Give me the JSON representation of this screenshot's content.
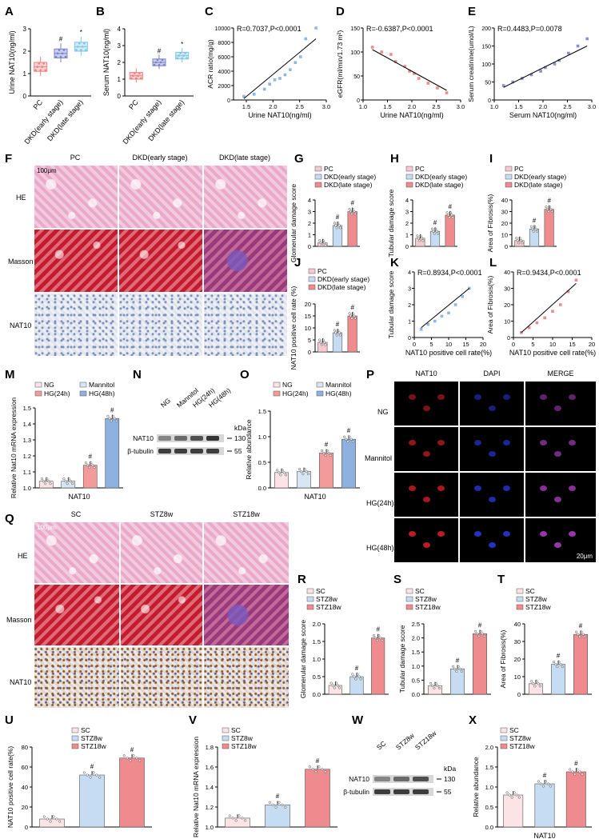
{
  "panels": {
    "A": {
      "letter": "A",
      "ylabel": "Urine NAT10(ng/ml)",
      "categories": [
        "PC",
        "DKD(early stage)",
        "DKD(late stage)"
      ],
      "values": [
        1.3,
        1.9,
        2.2
      ],
      "yticks": [
        "0",
        "1",
        "2",
        "3"
      ],
      "ylim": [
        0,
        3
      ],
      "marks": [
        "",
        "#",
        "*"
      ]
    },
    "B": {
      "letter": "B",
      "ylabel": "Serum NAT10(ng/ml)",
      "categories": [
        "PC",
        "DKD(early stage)",
        "DKD(late stage)"
      ],
      "values": [
        1.2,
        2.0,
        2.4
      ],
      "yticks": [
        "0",
        "1",
        "2",
        "3",
        "4"
      ],
      "ylim": [
        0,
        4
      ],
      "marks": [
        "",
        "#",
        "*"
      ]
    },
    "C": {
      "letter": "C",
      "stat": "R=0.7037,P<0.0001",
      "xlabel": "Urine NAT10(ng/ml)",
      "ylabel": "ACR ratio(mg/g)",
      "xticks": [
        "1.5",
        "2.0",
        "2.5",
        "3.0"
      ],
      "yticks": [
        "0",
        "2000",
        "4000",
        "6000",
        "8000",
        "10000"
      ]
    },
    "D": {
      "letter": "D",
      "stat": "R=-0.6387,P<0.0001",
      "xlabel": "Urine NAT10(ng/ml)",
      "ylabel": "eGFR(ml/min/1.73 m²)",
      "xticks": [
        "1.0",
        "1.5",
        "2.0",
        "2.5",
        "3.0"
      ],
      "yticks": [
        "0",
        "50",
        "100",
        "150"
      ]
    },
    "E": {
      "letter": "E",
      "stat": "R=0.4483,P=0.0078",
      "xlabel": "Serum NAT10(ng/ml)",
      "ylabel": "Serum creatinine(umol/L)",
      "xticks": [
        "1.0",
        "1.5",
        "2.0",
        "2.5",
        "3.0"
      ],
      "yticks": [
        "0",
        "50",
        "100",
        "150",
        "200"
      ]
    },
    "F": {
      "letter": "F",
      "columns": [
        "PC",
        "DKD(early stage)",
        "DKD(late stage)"
      ],
      "rows": [
        "HE",
        "Masson",
        "NAT10"
      ],
      "scale": "100μm"
    },
    "G": {
      "letter": "G",
      "ylabel": "Glomerular damage score",
      "legend": [
        "PC",
        "DKD(early stage)",
        "DKD(late stage)"
      ],
      "values": [
        0.3,
        1.8,
        3.0
      ],
      "yticks": [
        "0",
        "1",
        "2",
        "3",
        "4"
      ],
      "ylim": [
        0,
        4
      ],
      "marks": [
        "",
        "#",
        "#"
      ]
    },
    "H": {
      "letter": "H",
      "ylabel": "Tubular damage score",
      "legend": [
        "PC",
        "DKD(early stage)",
        "DKD(late stage)"
      ],
      "values": [
        0.7,
        1.3,
        2.7
      ],
      "yticks": [
        "0",
        "1",
        "2",
        "3",
        "4"
      ],
      "ylim": [
        0,
        4
      ],
      "marks": [
        "",
        "#",
        "#"
      ]
    },
    "I": {
      "letter": "I",
      "ylabel": "Area of Fibrosis(%)",
      "legend": [
        "PC",
        "DKD(early stage)",
        "DKD(late stage)"
      ],
      "values": [
        5,
        15,
        32
      ],
      "yticks": [
        "0",
        "10",
        "20",
        "30",
        "40"
      ],
      "ylim": [
        0,
        40
      ],
      "marks": [
        "",
        "#",
        "#"
      ]
    },
    "J": {
      "letter": "J",
      "ylabel": "NAT10 positive cell rate (%)",
      "legend": [
        "PC",
        "DKD(early stage)",
        "DKD(late stage)"
      ],
      "values": [
        4,
        8,
        15
      ],
      "yticks": [
        "0",
        "5",
        "10",
        "15",
        "20"
      ],
      "ylim": [
        0,
        20
      ],
      "marks": [
        "",
        "#",
        "#"
      ]
    },
    "K": {
      "letter": "K",
      "stat": "R=0.8934,P<0.0001",
      "xlabel": "NAT10 positive cell rate(%)",
      "ylabel": "Tubular damage score",
      "xticks": [
        "0",
        "5",
        "10",
        "15",
        "20"
      ],
      "yticks": [
        "0",
        "1",
        "2",
        "3",
        "4"
      ]
    },
    "L": {
      "letter": "L",
      "stat": "R=0.9434,P<0.0001",
      "xlabel": "NAT10 positive cell rate(%)",
      "ylabel": "Area of Fibrosis(%)",
      "xticks": [
        "0",
        "5",
        "10",
        "15",
        "20"
      ],
      "yticks": [
        "0",
        "10",
        "20",
        "30",
        "40"
      ]
    },
    "M": {
      "letter": "M",
      "ylabel": "Relative Nat10 mRNA expression",
      "xlabel": "NAT10",
      "legend": [
        "NG",
        "Mannitol",
        "HG(24h)",
        "HG(48h)"
      ],
      "values": [
        1.0,
        1.0,
        1.12,
        1.47
      ],
      "yticks": [
        "1.0",
        "1.1",
        "1.2",
        "1.3",
        "1.4",
        "1.5"
      ],
      "ylim": [
        0.95,
        1.55
      ],
      "marks": [
        "",
        "",
        "#",
        "#"
      ]
    },
    "N": {
      "letter": "N",
      "lanes": [
        "NG",
        "Mannitol",
        "HG(24h)",
        "HG(48h)"
      ],
      "bands": [
        "NAT10",
        "β-tubulin"
      ],
      "kda_label": "kDa",
      "kda": [
        "130",
        "55"
      ]
    },
    "O": {
      "letter": "O",
      "ylabel": "Relative abundance",
      "xlabel": "NAT10",
      "legend": [
        "NG",
        "Mannitol",
        "HG(24h)",
        "HG(48h)"
      ],
      "values": [
        0.3,
        0.32,
        0.68,
        0.95
      ],
      "yticks": [
        "0.0",
        "0.5",
        "1.0",
        "1.5"
      ],
      "ylim": [
        0,
        1.5
      ],
      "marks": [
        "",
        "",
        "#",
        "#"
      ]
    },
    "P": {
      "letter": "P",
      "columns": [
        "NAT10",
        "DAPI",
        "MERGE"
      ],
      "rows": [
        "NG",
        "Mannitol",
        "HG(24h)",
        "HG(48h)"
      ],
      "scale": "20μm"
    },
    "Q": {
      "letter": "Q",
      "columns": [
        "SC",
        "STZ8w",
        "STZ18w"
      ],
      "rows": [
        "HE",
        "Masson",
        "NAT10"
      ],
      "scale": "100μm"
    },
    "R": {
      "letter": "R",
      "ylabel": "Glomerular damage score",
      "legend": [
        "SC",
        "STZ8w",
        "STZ18w"
      ],
      "values": [
        0.25,
        0.5,
        1.6
      ],
      "yticks": [
        "0.0",
        "0.5",
        "1.0",
        "1.5",
        "2.0"
      ],
      "ylim": [
        0,
        2
      ],
      "marks": [
        "",
        "#",
        "#"
      ]
    },
    "S": {
      "letter": "S",
      "ylabel": "Tubular damage score",
      "legend": [
        "SC",
        "STZ8w",
        "STZ18w"
      ],
      "values": [
        0.3,
        0.9,
        2.15
      ],
      "yticks": [
        "0.0",
        "0.5",
        "1.0",
        "1.5",
        "2.0",
        "2.5"
      ],
      "ylim": [
        0,
        2.5
      ],
      "marks": [
        "",
        "#",
        "#"
      ]
    },
    "T": {
      "letter": "T",
      "ylabel": "Area of Fibrosis(%)",
      "legend": [
        "SC",
        "STZ8w",
        "STZ18w"
      ],
      "values": [
        6,
        17,
        34
      ],
      "yticks": [
        "0",
        "10",
        "20",
        "30",
        "40"
      ],
      "ylim": [
        0,
        40
      ],
      "marks": [
        "",
        "#",
        "#"
      ]
    },
    "U": {
      "letter": "U",
      "ylabel": "NAT10 positive cell rate(%)",
      "legend": [
        "SC",
        "STZ8w",
        "STZ18w"
      ],
      "values": [
        8,
        52,
        69
      ],
      "yticks": [
        "0",
        "20",
        "40",
        "60",
        "80"
      ],
      "ylim": [
        0,
        80
      ],
      "marks": [
        "",
        "#",
        "#"
      ]
    },
    "V": {
      "letter": "V",
      "ylabel": "Relative Nat10 mRNA expression",
      "legend": [
        "SC",
        "STZ8w",
        "STZ18w"
      ],
      "values": [
        1.0,
        1.15,
        1.55
      ],
      "yticks": [
        "1.0",
        "1.2",
        "1.4",
        "1.6",
        "1.8"
      ],
      "ylim": [
        0.9,
        1.8
      ],
      "marks": [
        "",
        "#",
        "#"
      ]
    },
    "W": {
      "letter": "W",
      "lanes": [
        "SC",
        "STZ8w",
        "STZ18w"
      ],
      "bands": [
        "NAT10",
        "β-tubulin"
      ],
      "kda_label": "kDa",
      "kda": [
        "130",
        "55"
      ]
    },
    "X": {
      "letter": "X",
      "ylabel": "Relative abundance",
      "xlabel": "NAT10",
      "legend": [
        "SC",
        "STZ8w",
        "STZ18w"
      ],
      "values": [
        0.8,
        1.08,
        1.38
      ],
      "yticks": [
        "0.0",
        "0.5",
        "1.0",
        "1.5",
        "2.0"
      ],
      "ylim": [
        0,
        2
      ],
      "marks": [
        "",
        "#",
        "#"
      ]
    }
  },
  "colors": {
    "pc": "#f5c9cf",
    "early": "#c6dcf2",
    "late": "#ef8b8e",
    "mannitol": "#d6e6f5",
    "hg24": "#f39b9a",
    "hg48": "#8fb1df",
    "ng": "#fbe3e6",
    "boxpc": "#f08080",
    "boxearly": "#7a82c8",
    "boxlate": "#7ec6e6",
    "scatter_blue": "#8fb6df",
    "scatter_red": "#ef8b8e",
    "scatter_purple": "#8a8fd0"
  },
  "chart_data": [
    {
      "type": "bar",
      "panel": "A",
      "categories": [
        "PC",
        "DKD(early stage)",
        "DKD(late stage)"
      ],
      "values": [
        1.3,
        1.9,
        2.2
      ],
      "ylabel": "Urine NAT10(ng/ml)",
      "ylim": [
        0,
        3
      ]
    },
    {
      "type": "bar",
      "panel": "B",
      "categories": [
        "PC",
        "DKD(early stage)",
        "DKD(late stage)"
      ],
      "values": [
        1.2,
        2.0,
        2.4
      ],
      "ylabel": "Serum NAT10(ng/ml)",
      "ylim": [
        0,
        4
      ]
    },
    {
      "type": "scatter",
      "panel": "C",
      "x": [
        1.4,
        1.6,
        1.8,
        1.9,
        2.0,
        2.1,
        2.2,
        2.3,
        2.4,
        2.5,
        2.6,
        2.8
      ],
      "y": [
        500,
        800,
        1500,
        2200,
        2800,
        3000,
        3500,
        4200,
        5200,
        6000,
        8500,
        10000
      ],
      "xlabel": "Urine NAT10(ng/ml)",
      "ylabel": "ACR ratio(mg/g)"
    },
    {
      "type": "scatter",
      "panel": "D",
      "x": [
        1.1,
        1.3,
        1.5,
        1.6,
        1.8,
        1.9,
        2.0,
        2.1,
        2.3,
        2.5,
        2.7
      ],
      "y": [
        110,
        100,
        95,
        80,
        70,
        60,
        55,
        45,
        35,
        25,
        15
      ],
      "xlabel": "Urine NAT10(ng/ml)",
      "ylabel": "eGFR(ml/min/1.73 m²)"
    },
    {
      "type": "scatter",
      "panel": "E",
      "x": [
        1.1,
        1.3,
        1.5,
        1.7,
        1.9,
        2.0,
        2.2,
        2.3,
        2.5,
        2.7,
        2.9
      ],
      "y": [
        40,
        50,
        60,
        70,
        80,
        90,
        100,
        110,
        130,
        150,
        170
      ],
      "xlabel": "Serum NAT10(ng/ml)",
      "ylabel": "Serum creatinine(umol/L)"
    },
    {
      "type": "bar",
      "panel": "G",
      "categories": [
        "PC",
        "DKD(early stage)",
        "DKD(late stage)"
      ],
      "values": [
        0.3,
        1.8,
        3.0
      ],
      "ylim": [
        0,
        4
      ]
    },
    {
      "type": "bar",
      "panel": "H",
      "categories": [
        "PC",
        "DKD(early stage)",
        "DKD(late stage)"
      ],
      "values": [
        0.7,
        1.3,
        2.7
      ],
      "ylim": [
        0,
        4
      ]
    },
    {
      "type": "bar",
      "panel": "I",
      "categories": [
        "PC",
        "DKD(early stage)",
        "DKD(late stage)"
      ],
      "values": [
        5,
        15,
        32
      ],
      "ylim": [
        0,
        40
      ]
    },
    {
      "type": "bar",
      "panel": "J",
      "categories": [
        "PC",
        "DKD(early stage)",
        "DKD(late stage)"
      ],
      "values": [
        4,
        8,
        15
      ],
      "ylim": [
        0,
        20
      ]
    },
    {
      "type": "scatter",
      "panel": "K",
      "x": [
        2,
        4,
        6,
        8,
        10,
        12,
        14,
        16
      ],
      "y": [
        0.5,
        0.8,
        1.0,
        1.3,
        1.5,
        2.0,
        2.5,
        3.0
      ]
    },
    {
      "type": "scatter",
      "panel": "L",
      "x": [
        2,
        4,
        6,
        8,
        10,
        12,
        14,
        16
      ],
      "y": [
        3,
        6,
        9,
        12,
        16,
        20,
        28,
        35
      ]
    },
    {
      "type": "bar",
      "panel": "M",
      "categories": [
        "NG",
        "Mannitol",
        "HG(24h)",
        "HG(48h)"
      ],
      "values": [
        1.0,
        1.0,
        1.12,
        1.47
      ]
    },
    {
      "type": "bar",
      "panel": "O",
      "categories": [
        "NG",
        "Mannitol",
        "HG(24h)",
        "HG(48h)"
      ],
      "values": [
        0.3,
        0.32,
        0.68,
        0.95
      ]
    },
    {
      "type": "bar",
      "panel": "R",
      "categories": [
        "SC",
        "STZ8w",
        "STZ18w"
      ],
      "values": [
        0.25,
        0.5,
        1.6
      ]
    },
    {
      "type": "bar",
      "panel": "S",
      "categories": [
        "SC",
        "STZ8w",
        "STZ18w"
      ],
      "values": [
        0.3,
        0.9,
        2.15
      ]
    },
    {
      "type": "bar",
      "panel": "T",
      "categories": [
        "SC",
        "STZ8w",
        "STZ18w"
      ],
      "values": [
        6,
        17,
        34
      ]
    },
    {
      "type": "bar",
      "panel": "U",
      "categories": [
        "SC",
        "STZ8w",
        "STZ18w"
      ],
      "values": [
        8,
        52,
        69
      ]
    },
    {
      "type": "bar",
      "panel": "V",
      "categories": [
        "SC",
        "STZ8w",
        "STZ18w"
      ],
      "values": [
        1.0,
        1.15,
        1.55
      ]
    },
    {
      "type": "bar",
      "panel": "X",
      "categories": [
        "SC",
        "STZ8w",
        "STZ18w"
      ],
      "values": [
        0.8,
        1.08,
        1.38
      ]
    }
  ]
}
